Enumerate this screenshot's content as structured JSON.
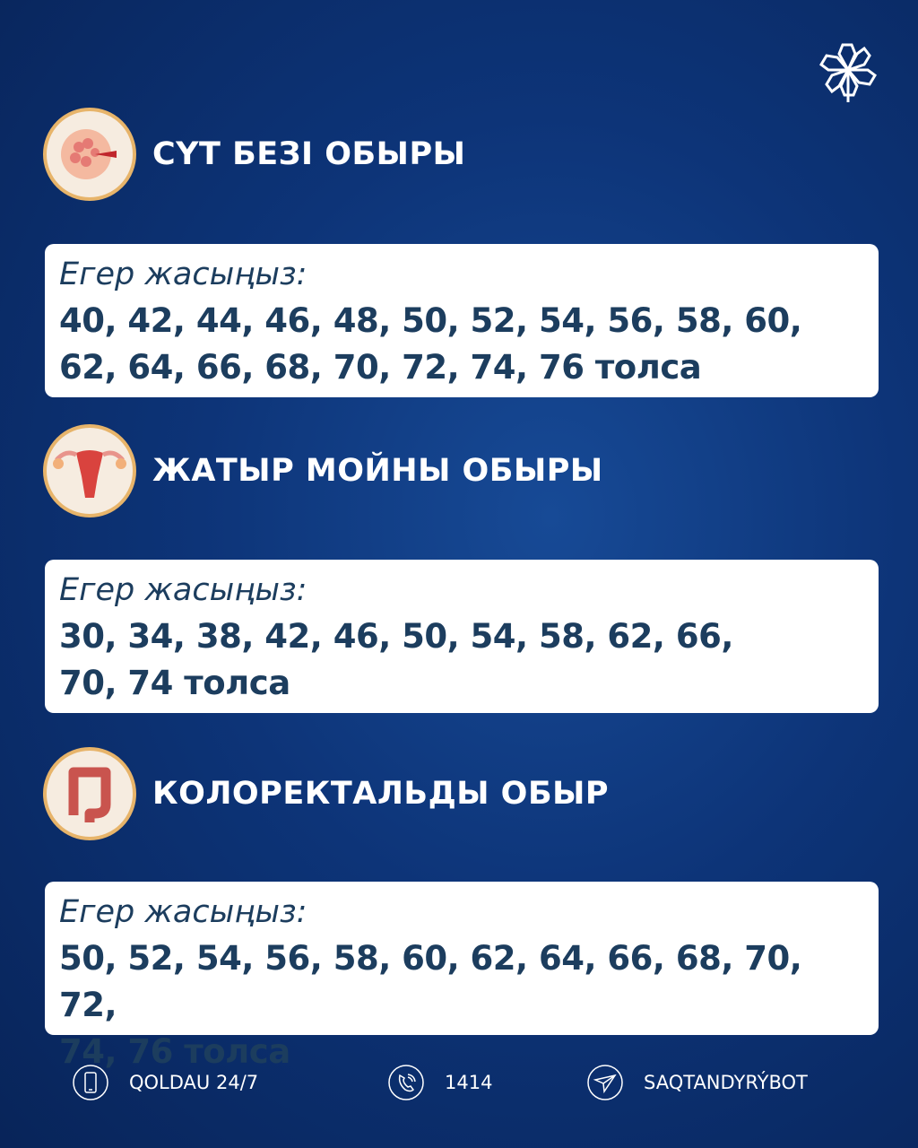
{
  "logo": "logo-icon",
  "sections": [
    {
      "title": "СҮТ БЕЗІ ОБЫРЫ",
      "icon": "breast-icon",
      "label": "Егер жасыңыз:",
      "ages_line1": "40, 42, 44, 46, 48, 50, 52, 54, 56, 58, 60,",
      "ages_line2": "62, 64, 66, 68, 70, 72, 74, 76 толса"
    },
    {
      "title": "ЖАТЫР МОЙНЫ ОБЫРЫ",
      "icon": "uterus-icon",
      "label": "Егер жасыңыз:",
      "ages_line1": "30, 34, 38, 42, 46, 50, 54, 58, 62, 66,",
      "ages_line2": "70, 74 толса"
    },
    {
      "title": "КОЛОРЕКТАЛЬДЫ ОБЫР",
      "icon": "colon-icon",
      "label": "Егер жасыңыз:",
      "ages_line1": "50, 52, 54, 56, 58, 60, 62, 64, 66, 68, 70, 72,",
      "ages_line2": "74, 76 толса"
    }
  ],
  "footer": [
    {
      "icon": "phone-icon",
      "text": "QOLDAU 24/7"
    },
    {
      "icon": "call-icon",
      "text": "1414"
    },
    {
      "icon": "telegram-icon",
      "text": "SAQTANDYRÝBOT"
    }
  ],
  "colors": {
    "background": "#0d3478",
    "card": "#ffffff",
    "card_text": "#1c3d5e",
    "icon_border": "#e7b46a"
  }
}
